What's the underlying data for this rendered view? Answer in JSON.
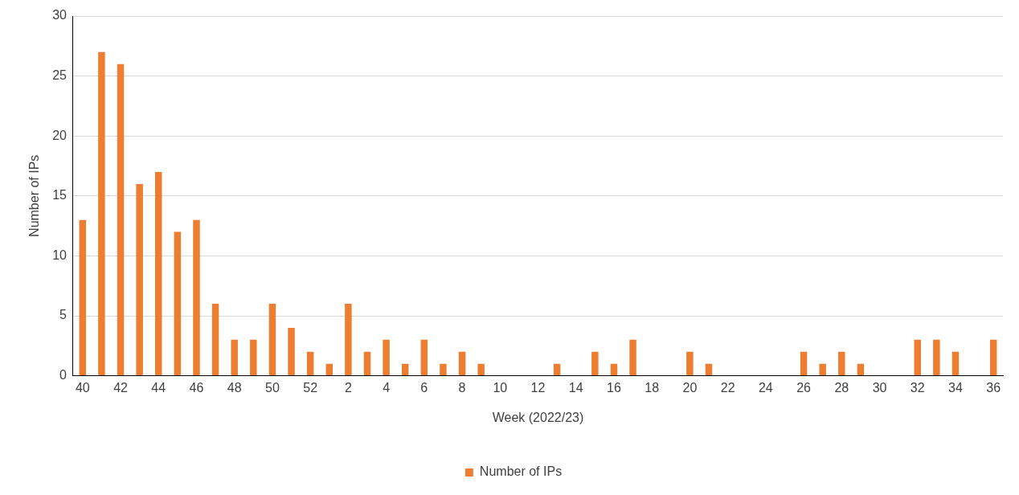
{
  "chart_data": {
    "type": "bar",
    "xlabel": "Week (2022/23)",
    "ylabel": "Number of IPs",
    "categories": [
      "40",
      null,
      "42",
      null,
      "44",
      null,
      "46",
      null,
      "48",
      null,
      "50",
      null,
      "52",
      null,
      "2",
      null,
      "4",
      null,
      "6",
      null,
      "8",
      null,
      "10",
      null,
      "12",
      null,
      "14",
      null,
      "16",
      null,
      "18",
      null,
      "20",
      null,
      "22",
      null,
      "24",
      null,
      "26",
      null,
      "28",
      null,
      "30",
      null,
      "32",
      null,
      "34",
      null,
      "36"
    ],
    "series": [
      {
        "name": "Number of IPs",
        "color": "#ed7d31",
        "values": [
          13,
          27,
          26,
          16,
          17,
          12,
          13,
          6,
          3,
          3,
          6,
          4,
          2,
          1,
          6,
          2,
          3,
          1,
          3,
          1,
          2,
          1,
          0,
          0,
          0,
          1,
          0,
          2,
          1,
          3,
          0,
          0,
          2,
          1,
          0,
          0,
          0,
          0,
          2,
          1,
          2,
          1,
          0,
          0,
          3,
          3,
          2,
          0,
          3
        ]
      }
    ],
    "ylim": [
      0,
      30
    ],
    "yticks": [
      0,
      5,
      10,
      15,
      20,
      25,
      30
    ],
    "grid": "y",
    "legend": "bottom"
  }
}
